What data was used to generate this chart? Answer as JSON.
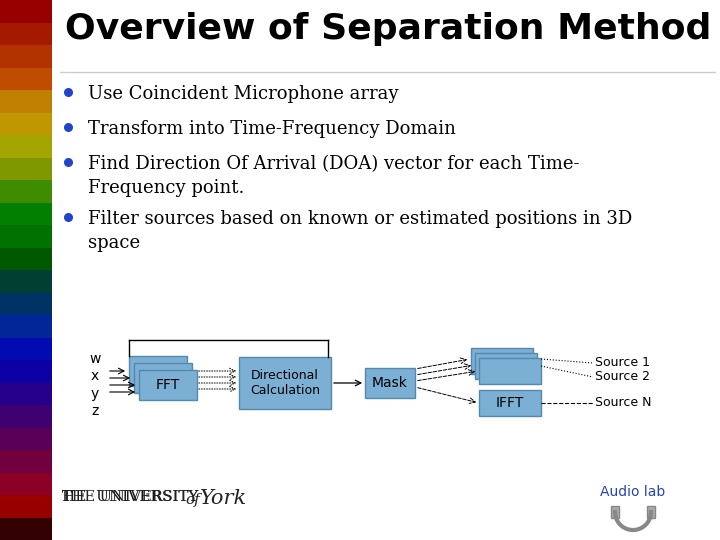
{
  "title": "Overview of Separation Method",
  "title_fontsize": 26,
  "title_fontweight": "bold",
  "bullet_fontsize": 13,
  "bg_color": "#ffffff",
  "box_fill_color": "#7bafd4",
  "box_edge_color": "#5588aa",
  "text_color": "#000000",
  "bullet_color": "#2244cc",
  "audio_lab_color": "#2244bb",
  "bullet_texts": [
    "Use Coincident Microphone array",
    "Transform into Time-Frequency Domain",
    "Find Direction Of Arrival (DOA) vector for each Time-\nFrequency point.",
    "Filter sources based on known or estimated positions in 3D\nspace"
  ],
  "diagram_labels": {
    "wxyz": "w\nx\ny\nz",
    "fft": "FFT",
    "dir_calc": "Directional\nCalculation",
    "mask": "Mask",
    "ifft": "IFFT",
    "source1": "Source 1",
    "source2": "Source 2",
    "sourceN": "Source N"
  },
  "left_bar_colors": [
    "#cc0000",
    "#dd2200",
    "#ee4400",
    "#ff6600",
    "#ffaa00",
    "#ffcc00",
    "#dddd00",
    "#aacc00",
    "#55bb00",
    "#00aa00",
    "#009900",
    "#007700",
    "#005544",
    "#004488",
    "#0033cc",
    "#0011ee",
    "#1100dd",
    "#3300bb",
    "#550099",
    "#770077",
    "#990055",
    "#bb0033",
    "#cc0000",
    "#440000"
  ]
}
